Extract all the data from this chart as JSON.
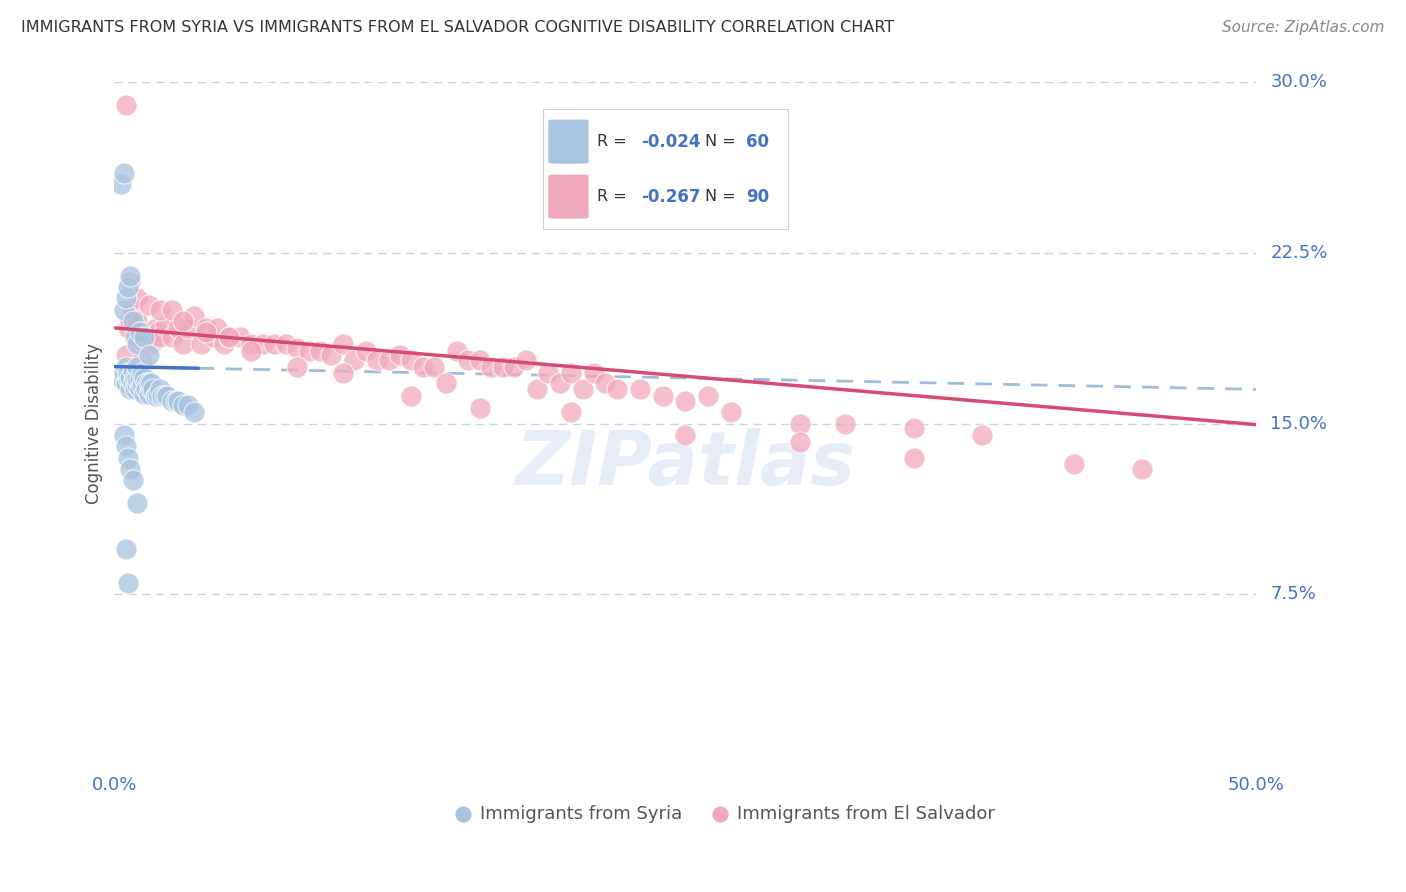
{
  "title": "IMMIGRANTS FROM SYRIA VS IMMIGRANTS FROM EL SALVADOR COGNITIVE DISABILITY CORRELATION CHART",
  "source": "Source: ZipAtlas.com",
  "ylabel": "Cognitive Disability",
  "xlim": [
    0.0,
    0.5
  ],
  "ylim": [
    0.0,
    0.3
  ],
  "yticks": [
    0.075,
    0.15,
    0.225,
    0.3
  ],
  "ytick_labels": [
    "7.5%",
    "15.0%",
    "22.5%",
    "30.0%"
  ],
  "legend_R_blue": "-0.024",
  "legend_N_blue": "60",
  "legend_R_pink": "-0.267",
  "legend_N_pink": "90",
  "watermark": "ZIPatlas",
  "blue_color": "#a8c4e0",
  "pink_color": "#f2a8bc",
  "blue_line_color": "#4472c4",
  "pink_line_color": "#d64b72",
  "dash_line_color": "#a0bcd8",
  "background_color": "#ffffff",
  "grid_color": "#c8d4e4",
  "axis_label_color": "#4472c4",
  "title_color": "#333333",
  "blue_label": "Immigrants from Syria",
  "pink_label": "Immigrants from El Salvador",
  "blue_x": [
    0.003,
    0.004,
    0.005,
    0.005,
    0.006,
    0.006,
    0.007,
    0.007,
    0.008,
    0.008,
    0.009,
    0.009,
    0.01,
    0.01,
    0.01,
    0.011,
    0.011,
    0.012,
    0.012,
    0.013,
    0.013,
    0.014,
    0.014,
    0.015,
    0.015,
    0.016,
    0.016,
    0.017,
    0.018,
    0.019,
    0.02,
    0.021,
    0.022,
    0.023,
    0.025,
    0.027,
    0.028,
    0.03,
    0.032,
    0.035,
    0.004,
    0.005,
    0.006,
    0.007,
    0.008,
    0.009,
    0.01,
    0.011,
    0.013,
    0.015,
    0.004,
    0.005,
    0.006,
    0.007,
    0.008,
    0.01,
    0.003,
    0.004,
    0.005,
    0.006
  ],
  "blue_y": [
    0.17,
    0.172,
    0.168,
    0.175,
    0.17,
    0.172,
    0.165,
    0.17,
    0.168,
    0.173,
    0.165,
    0.17,
    0.167,
    0.17,
    0.175,
    0.165,
    0.17,
    0.167,
    0.172,
    0.163,
    0.17,
    0.168,
    0.165,
    0.163,
    0.168,
    0.165,
    0.168,
    0.165,
    0.162,
    0.163,
    0.165,
    0.162,
    0.162,
    0.162,
    0.16,
    0.16,
    0.16,
    0.158,
    0.158,
    0.155,
    0.2,
    0.205,
    0.21,
    0.215,
    0.195,
    0.188,
    0.185,
    0.19,
    0.188,
    0.18,
    0.145,
    0.14,
    0.135,
    0.13,
    0.125,
    0.115,
    0.255,
    0.26,
    0.095,
    0.08
  ],
  "pink_x": [
    0.005,
    0.006,
    0.007,
    0.008,
    0.01,
    0.011,
    0.012,
    0.013,
    0.015,
    0.016,
    0.018,
    0.019,
    0.02,
    0.022,
    0.025,
    0.028,
    0.03,
    0.032,
    0.035,
    0.038,
    0.04,
    0.043,
    0.045,
    0.048,
    0.05,
    0.055,
    0.06,
    0.065,
    0.07,
    0.075,
    0.08,
    0.085,
    0.09,
    0.095,
    0.1,
    0.105,
    0.11,
    0.115,
    0.12,
    0.125,
    0.13,
    0.135,
    0.14,
    0.145,
    0.15,
    0.155,
    0.16,
    0.165,
    0.17,
    0.175,
    0.18,
    0.185,
    0.19,
    0.195,
    0.2,
    0.205,
    0.21,
    0.215,
    0.22,
    0.23,
    0.24,
    0.25,
    0.26,
    0.27,
    0.3,
    0.32,
    0.35,
    0.38,
    0.42,
    0.45,
    0.007,
    0.01,
    0.015,
    0.02,
    0.025,
    0.03,
    0.04,
    0.05,
    0.06,
    0.08,
    0.1,
    0.13,
    0.16,
    0.2,
    0.25,
    0.3,
    0.005,
    0.008,
    0.012,
    0.35
  ],
  "pink_y": [
    0.29,
    0.192,
    0.195,
    0.2,
    0.195,
    0.19,
    0.185,
    0.19,
    0.188,
    0.185,
    0.192,
    0.19,
    0.188,
    0.193,
    0.188,
    0.192,
    0.185,
    0.192,
    0.197,
    0.185,
    0.192,
    0.188,
    0.192,
    0.185,
    0.188,
    0.188,
    0.185,
    0.185,
    0.185,
    0.185,
    0.183,
    0.182,
    0.182,
    0.18,
    0.185,
    0.178,
    0.182,
    0.178,
    0.178,
    0.18,
    0.178,
    0.175,
    0.175,
    0.168,
    0.182,
    0.178,
    0.178,
    0.175,
    0.175,
    0.175,
    0.178,
    0.165,
    0.172,
    0.168,
    0.172,
    0.165,
    0.172,
    0.168,
    0.165,
    0.165,
    0.162,
    0.16,
    0.162,
    0.155,
    0.15,
    0.15,
    0.148,
    0.145,
    0.132,
    0.13,
    0.212,
    0.205,
    0.202,
    0.2,
    0.2,
    0.195,
    0.19,
    0.188,
    0.182,
    0.175,
    0.172,
    0.162,
    0.157,
    0.155,
    0.145,
    0.142,
    0.18,
    0.175,
    0.178,
    0.135
  ]
}
